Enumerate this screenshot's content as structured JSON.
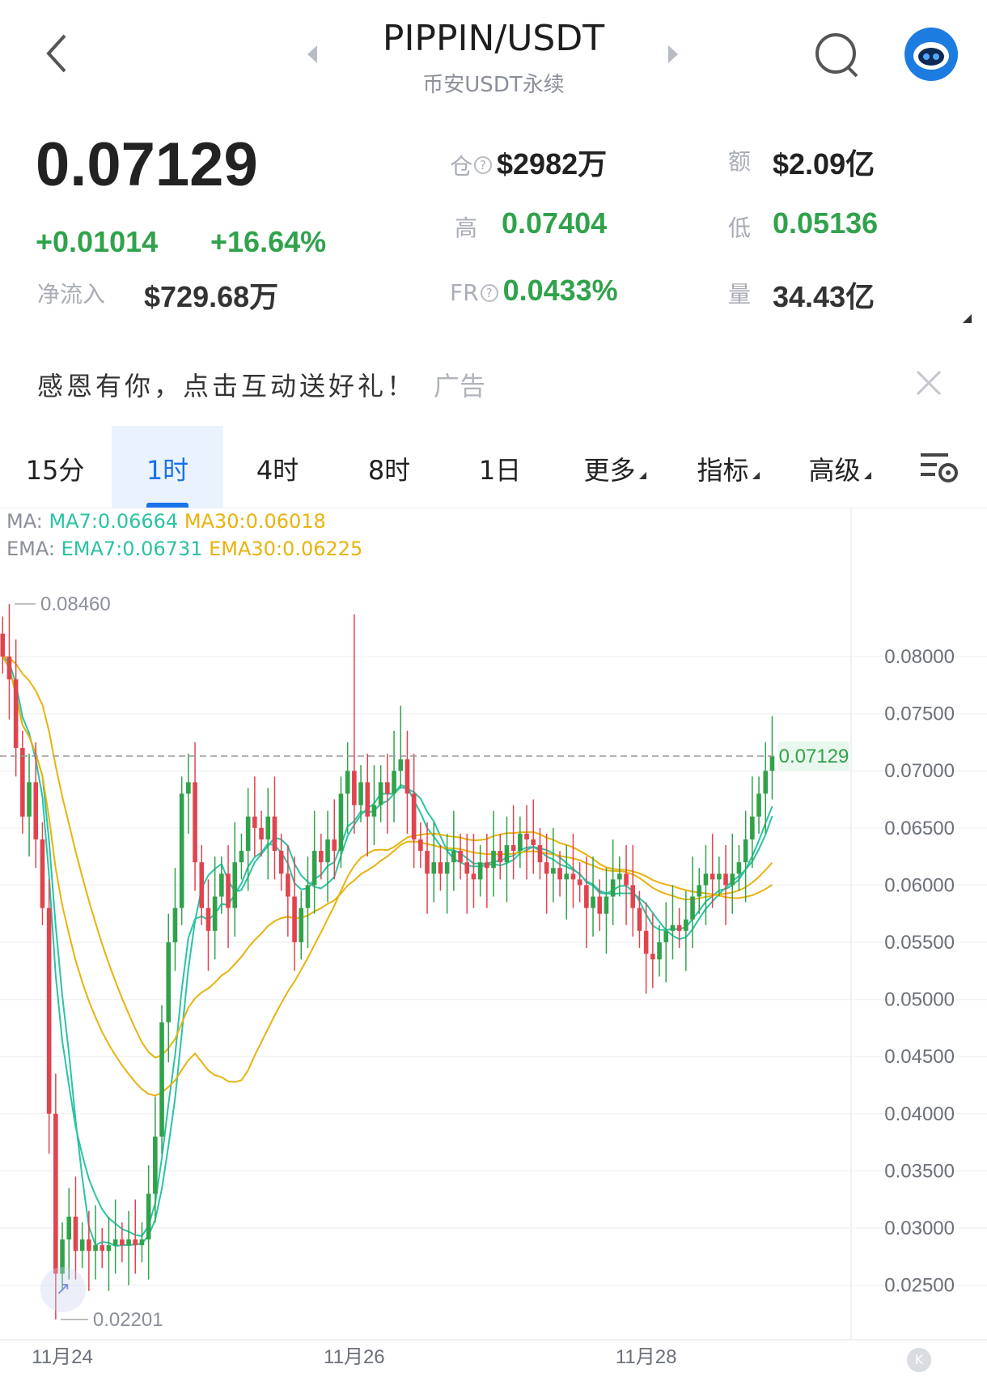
{
  "header": {
    "title": "PIPPIN/USDT",
    "subtitle": "币安USDT永续",
    "back_icon": "chevron-left-icon",
    "search_icon": "search-icon",
    "avatar_icon": "robot-avatar-icon"
  },
  "stats": {
    "price": "0.07129",
    "change": "+0.01014",
    "change_pct": "+16.64%",
    "net_inflow_label": "净流入",
    "net_inflow": "$729.68万",
    "oi_label": "仓",
    "oi": "$2982万",
    "amount_label": "额",
    "amount": "$2.09亿",
    "high_label": "高",
    "high": "0.07404",
    "low_label": "低",
    "low": "0.05136",
    "fr_label": "FR",
    "fr": "0.0433%",
    "vol_label": "量",
    "vol": "34.43亿"
  },
  "ad": {
    "text": "感恩有你，点击互动送好礼！",
    "tag": "广告"
  },
  "tabs": [
    {
      "label": "15分"
    },
    {
      "label": "1时",
      "active": true
    },
    {
      "label": "4时"
    },
    {
      "label": "8时"
    },
    {
      "label": "1日"
    },
    {
      "label": "更多"
    },
    {
      "label": "指标"
    },
    {
      "label": "高级"
    }
  ],
  "colors": {
    "up": "#31a24c",
    "down": "#e0444f",
    "ma7": "#2bc3a3",
    "ma30": "#e8b30c",
    "accent": "#1a73e8"
  },
  "chart_data": {
    "type": "candlestick",
    "legend": {
      "ma_label": "MA:",
      "ma7": "MA7:0.06664",
      "ma30": "MA30:0.06018",
      "ema_label": "EMA:",
      "ema7": "EMA7:0.06731",
      "ema30": "EMA30:0.06225"
    },
    "y_ticks": [
      "0.08000",
      "0.07500",
      "0.07000",
      "0.06500",
      "0.06000",
      "0.05500",
      "0.05000",
      "0.04500",
      "0.04000",
      "0.03500",
      "0.03000",
      "0.02500"
    ],
    "ylim": [
      0.025,
      0.08
    ],
    "x_labels": [
      {
        "label": "11月24",
        "index": 9
      },
      {
        "label": "11月26",
        "index": 53
      },
      {
        "label": "11月28",
        "index": 97
      }
    ],
    "current_price": "0.07129",
    "max_label": "0.08460",
    "min_label": "0.02201",
    "max": {
      "index": 1,
      "value": 0.0846
    },
    "min": {
      "index": 8,
      "value": 0.02201
    },
    "close": [
      0.08,
      0.078,
      0.072,
      0.066,
      0.069,
      0.064,
      0.058,
      0.04,
      0.026,
      0.029,
      0.031,
      0.028,
      0.029,
      0.028,
      0.0285,
      0.028,
      0.0285,
      0.029,
      0.0285,
      0.029,
      0.0285,
      0.029,
      0.033,
      0.038,
      0.048,
      0.055,
      0.058,
      0.068,
      0.069,
      0.062,
      0.058,
      0.056,
      0.059,
      0.061,
      0.058,
      0.062,
      0.063,
      0.066,
      0.065,
      0.064,
      0.066,
      0.063,
      0.061,
      0.059,
      0.055,
      0.058,
      0.06,
      0.063,
      0.062,
      0.064,
      0.063,
      0.068,
      0.07,
      0.067,
      0.069,
      0.066,
      0.067,
      0.069,
      0.068,
      0.07,
      0.071,
      0.068,
      0.064,
      0.063,
      0.061,
      0.062,
      0.061,
      0.062,
      0.063,
      0.062,
      0.061,
      0.0605,
      0.062,
      0.0615,
      0.063,
      0.062,
      0.0635,
      0.063,
      0.0645,
      0.064,
      0.0635,
      0.062,
      0.061,
      0.0615,
      0.0605,
      0.061,
      0.0605,
      0.06,
      0.058,
      0.059,
      0.0575,
      0.059,
      0.0605,
      0.061,
      0.06,
      0.058,
      0.056,
      0.054,
      0.0535,
      0.055,
      0.056,
      0.0565,
      0.056,
      0.057,
      0.059,
      0.06,
      0.061,
      0.0605,
      0.061,
      0.06,
      0.061,
      0.062,
      0.064,
      0.066,
      0.068,
      0.07,
      0.07129
    ]
  }
}
